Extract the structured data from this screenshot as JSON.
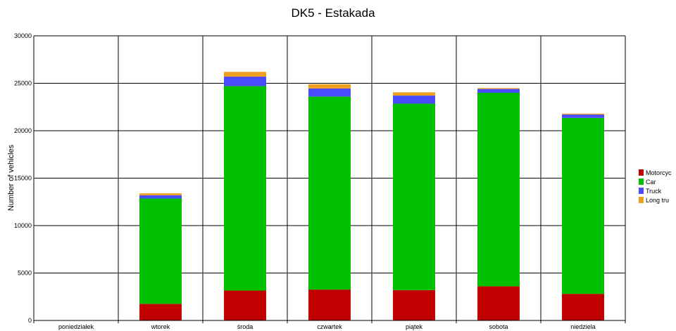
{
  "chart_data": {
    "type": "bar",
    "stacked": true,
    "title": "DK5 - Estakada",
    "xlabel": "",
    "ylabel": "Number of vehicles",
    "ylim": [
      0,
      30000
    ],
    "yticks": [
      0,
      5000,
      10000,
      15000,
      20000,
      25000,
      30000
    ],
    "ytick_labels": [
      "0",
      "5000",
      "10000",
      "15000",
      "20000",
      "25000",
      "30000"
    ],
    "grid": true,
    "legend_position": "right",
    "categories": [
      "poniedziałek",
      "wtorek",
      "środa",
      "czwartek",
      "piątek",
      "sobota",
      "niedziela"
    ],
    "series": [
      {
        "name": "Motorcyc",
        "color": "#c00000",
        "values": [
          0,
          1750,
          3150,
          3250,
          3200,
          3600,
          2800
        ]
      },
      {
        "name": "Car",
        "color": "#00c000",
        "values": [
          0,
          11100,
          21550,
          20350,
          19650,
          20400,
          18550
        ]
      },
      {
        "name": "Truck",
        "color": "#4a4aff",
        "values": [
          0,
          350,
          1000,
          850,
          850,
          400,
          350
        ]
      },
      {
        "name": "Long tru",
        "color": "#f0a020",
        "values": [
          0,
          200,
          500,
          450,
          350,
          100,
          100
        ]
      }
    ]
  }
}
